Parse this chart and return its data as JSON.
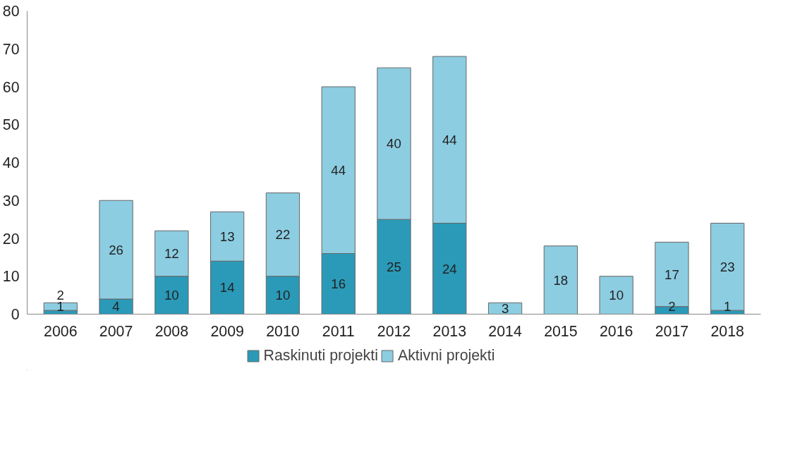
{
  "chart_data": {
    "type": "bar",
    "stacked": true,
    "categories": [
      "2006",
      "2007",
      "2008",
      "2009",
      "2010",
      "2011",
      "2012",
      "2013",
      "2014",
      "2015",
      "2016",
      "2017",
      "2018"
    ],
    "series": [
      {
        "name": "Raskinuti projekti",
        "color": "#2a9ab8",
        "values": [
          1,
          4,
          10,
          14,
          10,
          16,
          25,
          24,
          0,
          0,
          0,
          2,
          1
        ],
        "value_labels": [
          "1",
          "4",
          "10",
          "14",
          "10",
          "16",
          "25",
          "24",
          null,
          null,
          null,
          "2",
          "1"
        ]
      },
      {
        "name": "Aktivni projekti",
        "color": "#8ccde2",
        "values": [
          2,
          26,
          12,
          13,
          22,
          44,
          40,
          44,
          3,
          18,
          10,
          17,
          23
        ],
        "value_labels": [
          "2",
          "26",
          "12",
          "13",
          "22",
          "44",
          "40",
          "44",
          "3",
          "18",
          "10",
          "17",
          "23"
        ]
      }
    ],
    "ylim": [
      0,
      80
    ],
    "yticks": [
      0,
      10,
      20,
      30,
      40,
      50,
      60,
      70,
      80
    ],
    "grid": false,
    "legend": "bottom"
  }
}
